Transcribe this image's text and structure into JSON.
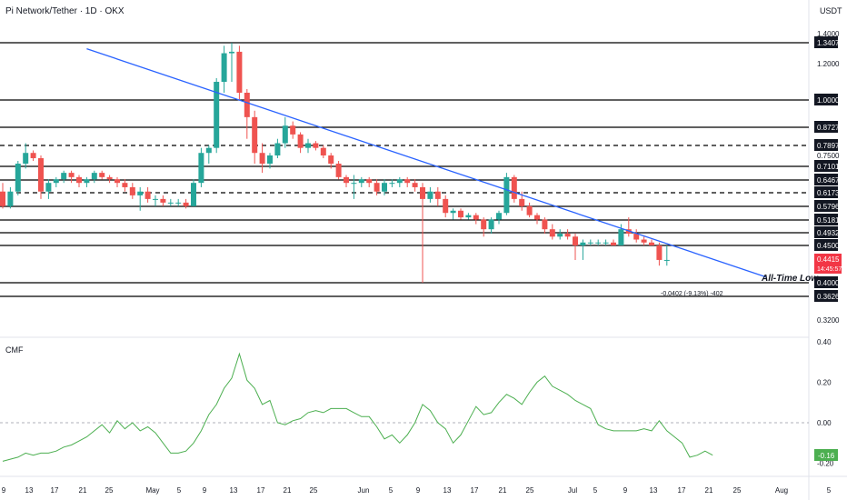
{
  "header": {
    "title": "Pi Network/Tether · 1D · OKX",
    "currency": "USDT"
  },
  "colors": {
    "up": "#26a69a",
    "down": "#ef5350",
    "trendline": "#2962ff",
    "cmf": "#4caf50",
    "level": "#000000",
    "price_tag": "#f23645"
  },
  "chart_data": [
    {
      "type": "candlestick",
      "title": "Pi Network/Tether · 1D · OKX",
      "y_axis_unit": "USDT",
      "y_ticks": [
        "1.4000",
        "1.2000",
        "0.7500",
        "0.3200"
      ],
      "x_ticks": [
        "9",
        "13",
        "17",
        "21",
        "25",
        "May",
        "5",
        "9",
        "13",
        "17",
        "21",
        "25",
        "Jun",
        "5",
        "9",
        "13",
        "17",
        "21",
        "25",
        "Jul",
        "5",
        "9",
        "13",
        "17",
        "21",
        "25",
        "Aug",
        "5"
      ],
      "horizontal_levels": [
        {
          "value": "1.3407",
          "style": "solid"
        },
        {
          "value": "1.0000",
          "style": "solid"
        },
        {
          "value": "0.8727",
          "style": "solid"
        },
        {
          "value": "0.7897",
          "style": "dashed"
        },
        {
          "value": "0.7101",
          "style": "solid"
        },
        {
          "value": "0.6467",
          "style": "solid"
        },
        {
          "value": "0.6173",
          "style": "dashed"
        },
        {
          "value": "0.5796",
          "style": "solid"
        },
        {
          "value": "0.5181",
          "style": "solid"
        },
        {
          "value": "0.4932",
          "style": "solid"
        },
        {
          "value": "0.4500",
          "style": "solid"
        },
        {
          "value": "0.4000",
          "style": "solid"
        },
        {
          "value": "0.3626",
          "style": "solid"
        }
      ],
      "current_price": {
        "value": "0.4415",
        "countdown": "14:45:57"
      },
      "annotation": "All-Time Low",
      "measure_label": "-0.0402 (-9.13%) -402",
      "trendline": {
        "from": [
          11,
          1.3
        ],
        "to": [
          100,
          0.41
        ]
      },
      "candles": [
        [
          0.62,
          0.64,
          0.57,
          0.58
        ],
        [
          0.58,
          0.63,
          0.57,
          0.62
        ],
        [
          0.62,
          0.73,
          0.61,
          0.72
        ],
        [
          0.72,
          0.8,
          0.7,
          0.76
        ],
        [
          0.76,
          0.77,
          0.73,
          0.74
        ],
        [
          0.74,
          0.75,
          0.6,
          0.62
        ],
        [
          0.62,
          0.65,
          0.6,
          0.64
        ],
        [
          0.64,
          0.66,
          0.63,
          0.65
        ],
        [
          0.65,
          0.69,
          0.64,
          0.68
        ],
        [
          0.68,
          0.69,
          0.64,
          0.66
        ],
        [
          0.66,
          0.67,
          0.63,
          0.64
        ],
        [
          0.64,
          0.66,
          0.63,
          0.65
        ],
        [
          0.65,
          0.69,
          0.64,
          0.68
        ],
        [
          0.68,
          0.69,
          0.65,
          0.66
        ],
        [
          0.66,
          0.67,
          0.64,
          0.65
        ],
        [
          0.65,
          0.66,
          0.63,
          0.64
        ],
        [
          0.64,
          0.65,
          0.62,
          0.63
        ],
        [
          0.63,
          0.64,
          0.6,
          0.61
        ],
        [
          0.61,
          0.63,
          0.56,
          0.62
        ],
        [
          0.62,
          0.63,
          0.59,
          0.6
        ],
        [
          0.6,
          0.61,
          0.58,
          0.6
        ],
        [
          0.6,
          0.61,
          0.58,
          0.59
        ],
        [
          0.59,
          0.6,
          0.58,
          0.59
        ],
        [
          0.59,
          0.6,
          0.58,
          0.59
        ],
        [
          0.59,
          0.6,
          0.57,
          0.58
        ],
        [
          0.58,
          0.65,
          0.58,
          0.64
        ],
        [
          0.64,
          0.78,
          0.63,
          0.76
        ],
        [
          0.76,
          0.79,
          0.72,
          0.78
        ],
        [
          0.78,
          1.12,
          0.76,
          1.1
        ],
        [
          1.1,
          1.32,
          1.04,
          1.27
        ],
        [
          1.27,
          1.34,
          1.1,
          1.28
        ],
        [
          1.28,
          1.32,
          1.0,
          1.04
        ],
        [
          1.04,
          1.06,
          0.82,
          0.92
        ],
        [
          0.92,
          0.95,
          0.72,
          0.76
        ],
        [
          0.76,
          0.8,
          0.68,
          0.72
        ],
        [
          0.72,
          0.76,
          0.7,
          0.75
        ],
        [
          0.75,
          0.82,
          0.74,
          0.8
        ],
        [
          0.8,
          0.92,
          0.78,
          0.88
        ],
        [
          0.88,
          0.9,
          0.82,
          0.84
        ],
        [
          0.84,
          0.85,
          0.76,
          0.78
        ],
        [
          0.78,
          0.82,
          0.76,
          0.8
        ],
        [
          0.8,
          0.81,
          0.77,
          0.78
        ],
        [
          0.78,
          0.79,
          0.74,
          0.75
        ],
        [
          0.75,
          0.76,
          0.7,
          0.72
        ],
        [
          0.72,
          0.73,
          0.65,
          0.66
        ],
        [
          0.66,
          0.67,
          0.63,
          0.64
        ],
        [
          0.64,
          0.67,
          0.6,
          0.64
        ],
        [
          0.64,
          0.66,
          0.63,
          0.65
        ],
        [
          0.65,
          0.66,
          0.63,
          0.64
        ],
        [
          0.64,
          0.65,
          0.61,
          0.62
        ],
        [
          0.62,
          0.65,
          0.61,
          0.64
        ],
        [
          0.64,
          0.65,
          0.63,
          0.64
        ],
        [
          0.64,
          0.66,
          0.63,
          0.65
        ],
        [
          0.65,
          0.66,
          0.63,
          0.64
        ],
        [
          0.64,
          0.65,
          0.62,
          0.63
        ],
        [
          0.63,
          0.64,
          0.4,
          0.6
        ],
        [
          0.6,
          0.63,
          0.59,
          0.62
        ],
        [
          0.62,
          0.63,
          0.58,
          0.6
        ],
        [
          0.6,
          0.61,
          0.53,
          0.55
        ],
        [
          0.55,
          0.57,
          0.52,
          0.56
        ],
        [
          0.56,
          0.57,
          0.52,
          0.53
        ],
        [
          0.53,
          0.55,
          0.52,
          0.54
        ],
        [
          0.54,
          0.55,
          0.51,
          0.52
        ],
        [
          0.52,
          0.53,
          0.48,
          0.5
        ],
        [
          0.5,
          0.53,
          0.49,
          0.52
        ],
        [
          0.52,
          0.56,
          0.51,
          0.55
        ],
        [
          0.55,
          0.68,
          0.54,
          0.66
        ],
        [
          0.66,
          0.67,
          0.59,
          0.6
        ],
        [
          0.6,
          0.62,
          0.56,
          0.58
        ],
        [
          0.58,
          0.59,
          0.53,
          0.54
        ],
        [
          0.54,
          0.55,
          0.51,
          0.52
        ],
        [
          0.52,
          0.53,
          0.49,
          0.5
        ],
        [
          0.5,
          0.51,
          0.47,
          0.48
        ],
        [
          0.48,
          0.5,
          0.47,
          0.49
        ],
        [
          0.49,
          0.5,
          0.47,
          0.48
        ],
        [
          0.48,
          0.49,
          0.44,
          0.45
        ],
        [
          0.45,
          0.47,
          0.44,
          0.46
        ],
        [
          0.46,
          0.47,
          0.45,
          0.46
        ],
        [
          0.46,
          0.47,
          0.45,
          0.46
        ],
        [
          0.46,
          0.47,
          0.45,
          0.46
        ],
        [
          0.46,
          0.47,
          0.45,
          0.45
        ],
        [
          0.45,
          0.51,
          0.45,
          0.5
        ],
        [
          0.5,
          0.53,
          0.48,
          0.49
        ],
        [
          0.49,
          0.5,
          0.46,
          0.47
        ],
        [
          0.47,
          0.48,
          0.45,
          0.46
        ],
        [
          0.46,
          0.47,
          0.45,
          0.45
        ],
        [
          0.45,
          0.46,
          0.43,
          0.44
        ],
        [
          0.44,
          0.45,
          0.43,
          0.44
        ]
      ]
    },
    {
      "type": "line",
      "title": "CMF",
      "y_ticks": [
        "0.40",
        "0.20",
        "0.00",
        "-0.20"
      ],
      "ylim": [
        -0.22,
        0.4
      ],
      "current_value": "-0.16",
      "values": [
        -0.19,
        -0.18,
        -0.17,
        -0.15,
        -0.16,
        -0.15,
        -0.15,
        -0.14,
        -0.12,
        -0.11,
        -0.09,
        -0.07,
        -0.04,
        -0.01,
        -0.05,
        0.01,
        -0.03,
        0.0,
        -0.04,
        -0.02,
        -0.05,
        -0.1,
        -0.15,
        -0.15,
        -0.14,
        -0.1,
        -0.04,
        0.04,
        0.09,
        0.17,
        0.22,
        0.34,
        0.21,
        0.17,
        0.09,
        0.11,
        0.0,
        -0.01,
        0.01,
        0.02,
        0.05,
        0.06,
        0.05,
        0.07,
        0.07,
        0.07,
        0.05,
        0.03,
        0.03,
        -0.02,
        -0.08,
        -0.06,
        -0.1,
        -0.06,
        0.0,
        0.09,
        0.06,
        0.0,
        -0.03,
        -0.1,
        -0.06,
        0.01,
        0.08,
        0.04,
        0.05,
        0.1,
        0.14,
        0.12,
        0.09,
        0.15,
        0.2,
        0.23,
        0.18,
        0.16,
        0.14,
        0.11,
        0.09,
        0.07,
        -0.01,
        -0.03,
        -0.04,
        -0.04,
        -0.04,
        -0.04,
        -0.03,
        -0.04,
        0.01,
        -0.04,
        -0.07,
        -0.1,
        -0.17,
        -0.16,
        -0.14,
        -0.16
      ]
    }
  ]
}
